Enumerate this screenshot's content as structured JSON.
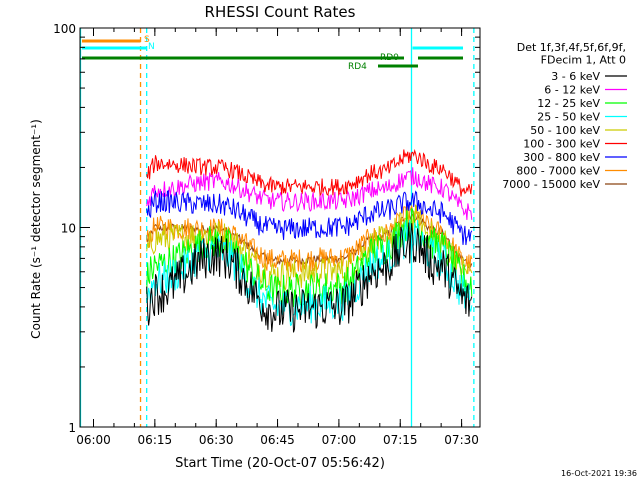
{
  "chart_data": {
    "type": "line",
    "title": "RHESSI Count Rates",
    "xlabel": "Start Time (20-Oct-07 05:56:42)",
    "ylabel": "Count Rate (s⁻¹ detector segment⁻¹)",
    "y_scale": "log",
    "ylim": [
      1,
      100
    ],
    "xlim": [
      "05:56:42",
      "07:34:30"
    ],
    "x_ticks": [
      "06:00",
      "06:15",
      "06:30",
      "06:45",
      "07:00",
      "07:15",
      "07:30"
    ],
    "y_ticks": [
      "1",
      "10",
      "100"
    ],
    "legend_header": [
      "Det 1f,3f,4f,5f,6f,9f,",
      "FDecim 1, Att 0"
    ],
    "series": [
      {
        "name": "3 - 6 keV",
        "color": "#000000",
        "x": [
          "06:15",
          "06:30",
          "06:45",
          "07:00",
          "07:10",
          "07:18",
          "07:24",
          "07:32"
        ],
        "values": [
          4.7,
          7.3,
          3.8,
          4.0,
          6.2,
          8.5,
          6.5,
          4.2
        ]
      },
      {
        "name": "6 - 12 keV",
        "color": "#ff00ff",
        "x": [
          "06:15",
          "06:30",
          "06:45",
          "07:00",
          "07:10",
          "07:18",
          "07:24",
          "07:32"
        ],
        "values": [
          15.5,
          17.0,
          13.5,
          13.5,
          15.5,
          18.0,
          16.0,
          12.0
        ]
      },
      {
        "name": "12 - 25 keV",
        "color": "#00ff00",
        "x": [
          "06:15",
          "06:30",
          "06:45",
          "07:00",
          "07:10",
          "07:18",
          "07:24",
          "07:32"
        ],
        "values": [
          6.5,
          8.5,
          4.8,
          5.0,
          7.8,
          10.5,
          8.2,
          5.3
        ]
      },
      {
        "name": "25 - 50 keV",
        "color": "#00ffff",
        "x": [
          "06:15",
          "06:30",
          "06:45",
          "07:00",
          "07:10",
          "07:18",
          "07:24",
          "07:32"
        ],
        "values": [
          5.4,
          7.6,
          4.0,
          4.2,
          6.8,
          9.0,
          7.0,
          4.5
        ]
      },
      {
        "name": "50 - 100 keV",
        "color": "#cccc00",
        "x": [
          "06:15",
          "06:30",
          "06:45",
          "07:00",
          "07:10",
          "07:18",
          "07:24",
          "07:32"
        ],
        "values": [
          8.8,
          9.2,
          5.8,
          6.0,
          8.5,
          11.0,
          8.8,
          6.0
        ]
      },
      {
        "name": "100 - 300 keV",
        "color": "#ff0000",
        "x": [
          "06:15",
          "06:30",
          "06:45",
          "07:00",
          "07:10",
          "07:18",
          "07:24",
          "07:32"
        ],
        "values": [
          21.0,
          20.0,
          16.0,
          16.0,
          19.0,
          23.0,
          20.0,
          15.0
        ]
      },
      {
        "name": "300 - 800 keV",
        "color": "#0000ff",
        "x": [
          "06:15",
          "06:30",
          "06:45",
          "07:00",
          "07:10",
          "07:18",
          "07:24",
          "07:32"
        ],
        "values": [
          13.5,
          13.0,
          9.8,
          10.0,
          12.0,
          13.5,
          12.0,
          9.0
        ]
      },
      {
        "name": "800 - 7000 keV",
        "color": "#ff8c00",
        "x": [
          "06:15",
          "06:30",
          "06:45",
          "07:00",
          "07:10",
          "07:18",
          "07:24",
          "07:32"
        ],
        "values": [
          10.0,
          9.8,
          6.8,
          7.0,
          9.0,
          11.5,
          9.5,
          6.5
        ]
      },
      {
        "name": "7000 - 15000 keV",
        "color": "#8b4513",
        "x": [
          "06:15",
          "06:30",
          "06:45",
          "07:00",
          "07:10",
          "07:18",
          "07:24",
          "07:32"
        ],
        "values": [
          10.0,
          9.8,
          6.8,
          7.0,
          9.0,
          11.5,
          9.5,
          6.5
        ]
      }
    ],
    "annotations": [
      {
        "label": "S",
        "color": "#ff8c00"
      },
      {
        "label": "N",
        "color": "#00ffff"
      },
      {
        "label": "RD0",
        "color": "#008000"
      },
      {
        "label": "RD4",
        "color": "#008000"
      }
    ],
    "timestamp": "16-Oct-2021 19:36",
    "grid": false,
    "legend_position": "right"
  }
}
